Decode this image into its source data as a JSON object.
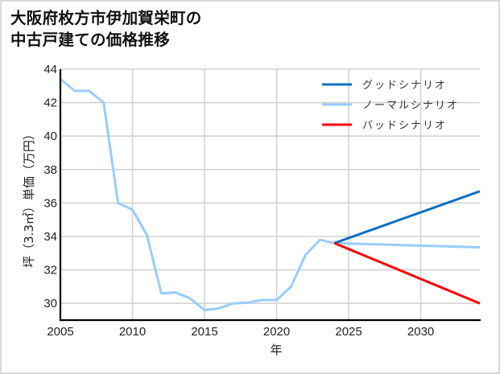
{
  "title_lines": [
    "大阪府枚方市伊加賀栄町の",
    "中古戸建ての価格推移"
  ],
  "chart_data": {
    "type": "line",
    "title": "大阪府枚方市伊加賀栄町の中古戸建ての価格推移",
    "xlabel": "年",
    "ylabel": "坪（3.3㎡）単価（万円）",
    "xlim": [
      2005,
      2034.1
    ],
    "ylim": [
      29.0,
      44.0
    ],
    "x_ticks": [
      2005,
      2010,
      2015,
      2020,
      2025,
      2030
    ],
    "y_ticks": [
      30,
      32,
      34,
      36,
      38,
      40,
      42,
      44
    ],
    "grid": true,
    "legend_position": "upper right",
    "series": [
      {
        "name": "グッドシナリオ",
        "color": "#0a6fc2",
        "x": [
          2024,
          2034.1
        ],
        "values": [
          33.6,
          36.7
        ]
      },
      {
        "name": "ノーマルシナリオ",
        "color": "#99ccff",
        "x": [
          2005,
          2006,
          2007,
          2008,
          2009,
          2010,
          2011,
          2012,
          2013,
          2014,
          2015,
          2016,
          2017,
          2018,
          2019,
          2020,
          2021,
          2022,
          2023,
          2024,
          2034.1
        ],
        "values": [
          43.4,
          42.7,
          42.7,
          42.0,
          36.0,
          35.6,
          34.1,
          30.6,
          30.65,
          30.3,
          29.6,
          29.7,
          30.0,
          30.05,
          30.2,
          30.2,
          31.0,
          32.9,
          33.8,
          33.6,
          33.35
        ]
      },
      {
        "name": "バッドシナリオ",
        "color": "#ff0000",
        "x": [
          2024,
          2034.1
        ],
        "values": [
          33.6,
          30.0
        ]
      }
    ]
  }
}
